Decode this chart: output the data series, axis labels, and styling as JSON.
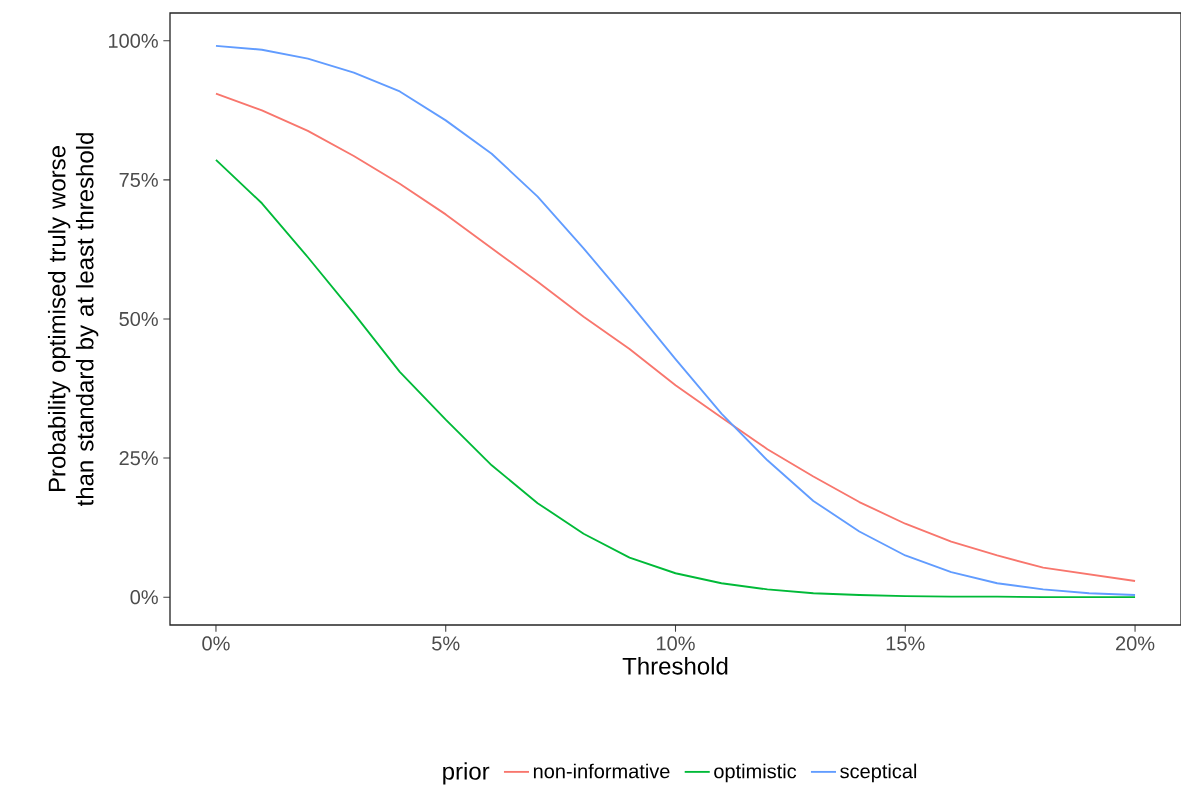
{
  "chart_data": {
    "type": "line",
    "xlabel": "Threshold",
    "ylabel": "Probability optimised truly worse than standard by at least threshold",
    "legend_title": "prior",
    "legend": "bottom",
    "grid": false,
    "x": [
      0,
      1,
      2,
      3,
      4,
      5,
      6,
      7,
      8,
      9,
      10,
      11,
      12,
      13,
      14,
      15,
      16,
      17,
      18,
      19,
      20
    ],
    "xlim": [
      -1,
      21
    ],
    "ylim": [
      -5,
      105
    ],
    "xticks": [
      {
        "value": 0,
        "label": "0%"
      },
      {
        "value": 5,
        "label": "5%"
      },
      {
        "value": 10,
        "label": "10%"
      },
      {
        "value": 15,
        "label": "15%"
      },
      {
        "value": 20,
        "label": "20%"
      }
    ],
    "yticks": [
      {
        "value": 0,
        "label": "0%"
      },
      {
        "value": 25,
        "label": "25%"
      },
      {
        "value": 50,
        "label": "50%"
      },
      {
        "value": 75,
        "label": "75%"
      },
      {
        "value": 100,
        "label": "100%"
      }
    ],
    "series": [
      {
        "name": "non-informative",
        "color": "#f8766d",
        "values": [
          90.5,
          87.5,
          83.8,
          79.3,
          74.3,
          68.8,
          62.7,
          56.7,
          50.4,
          44.6,
          38.1,
          32.3,
          26.6,
          21.7,
          17.1,
          13.2,
          10.0,
          7.5,
          5.3,
          4.1,
          2.9
        ]
      },
      {
        "name": "optimistic",
        "color": "#00ba38",
        "values": [
          78.6,
          70.8,
          61.1,
          51.0,
          40.5,
          31.9,
          23.7,
          16.9,
          11.4,
          7.1,
          4.3,
          2.5,
          1.4,
          0.7,
          0.4,
          0.2,
          0.1,
          0.1,
          0.0,
          0.0,
          0.0
        ]
      },
      {
        "name": "sceptical",
        "color": "#619cff",
        "values": [
          99.1,
          98.4,
          96.8,
          94.3,
          90.9,
          85.7,
          79.7,
          72.0,
          62.7,
          52.9,
          42.8,
          33.0,
          24.6,
          17.3,
          11.8,
          7.5,
          4.5,
          2.5,
          1.4,
          0.7,
          0.4
        ]
      }
    ]
  }
}
